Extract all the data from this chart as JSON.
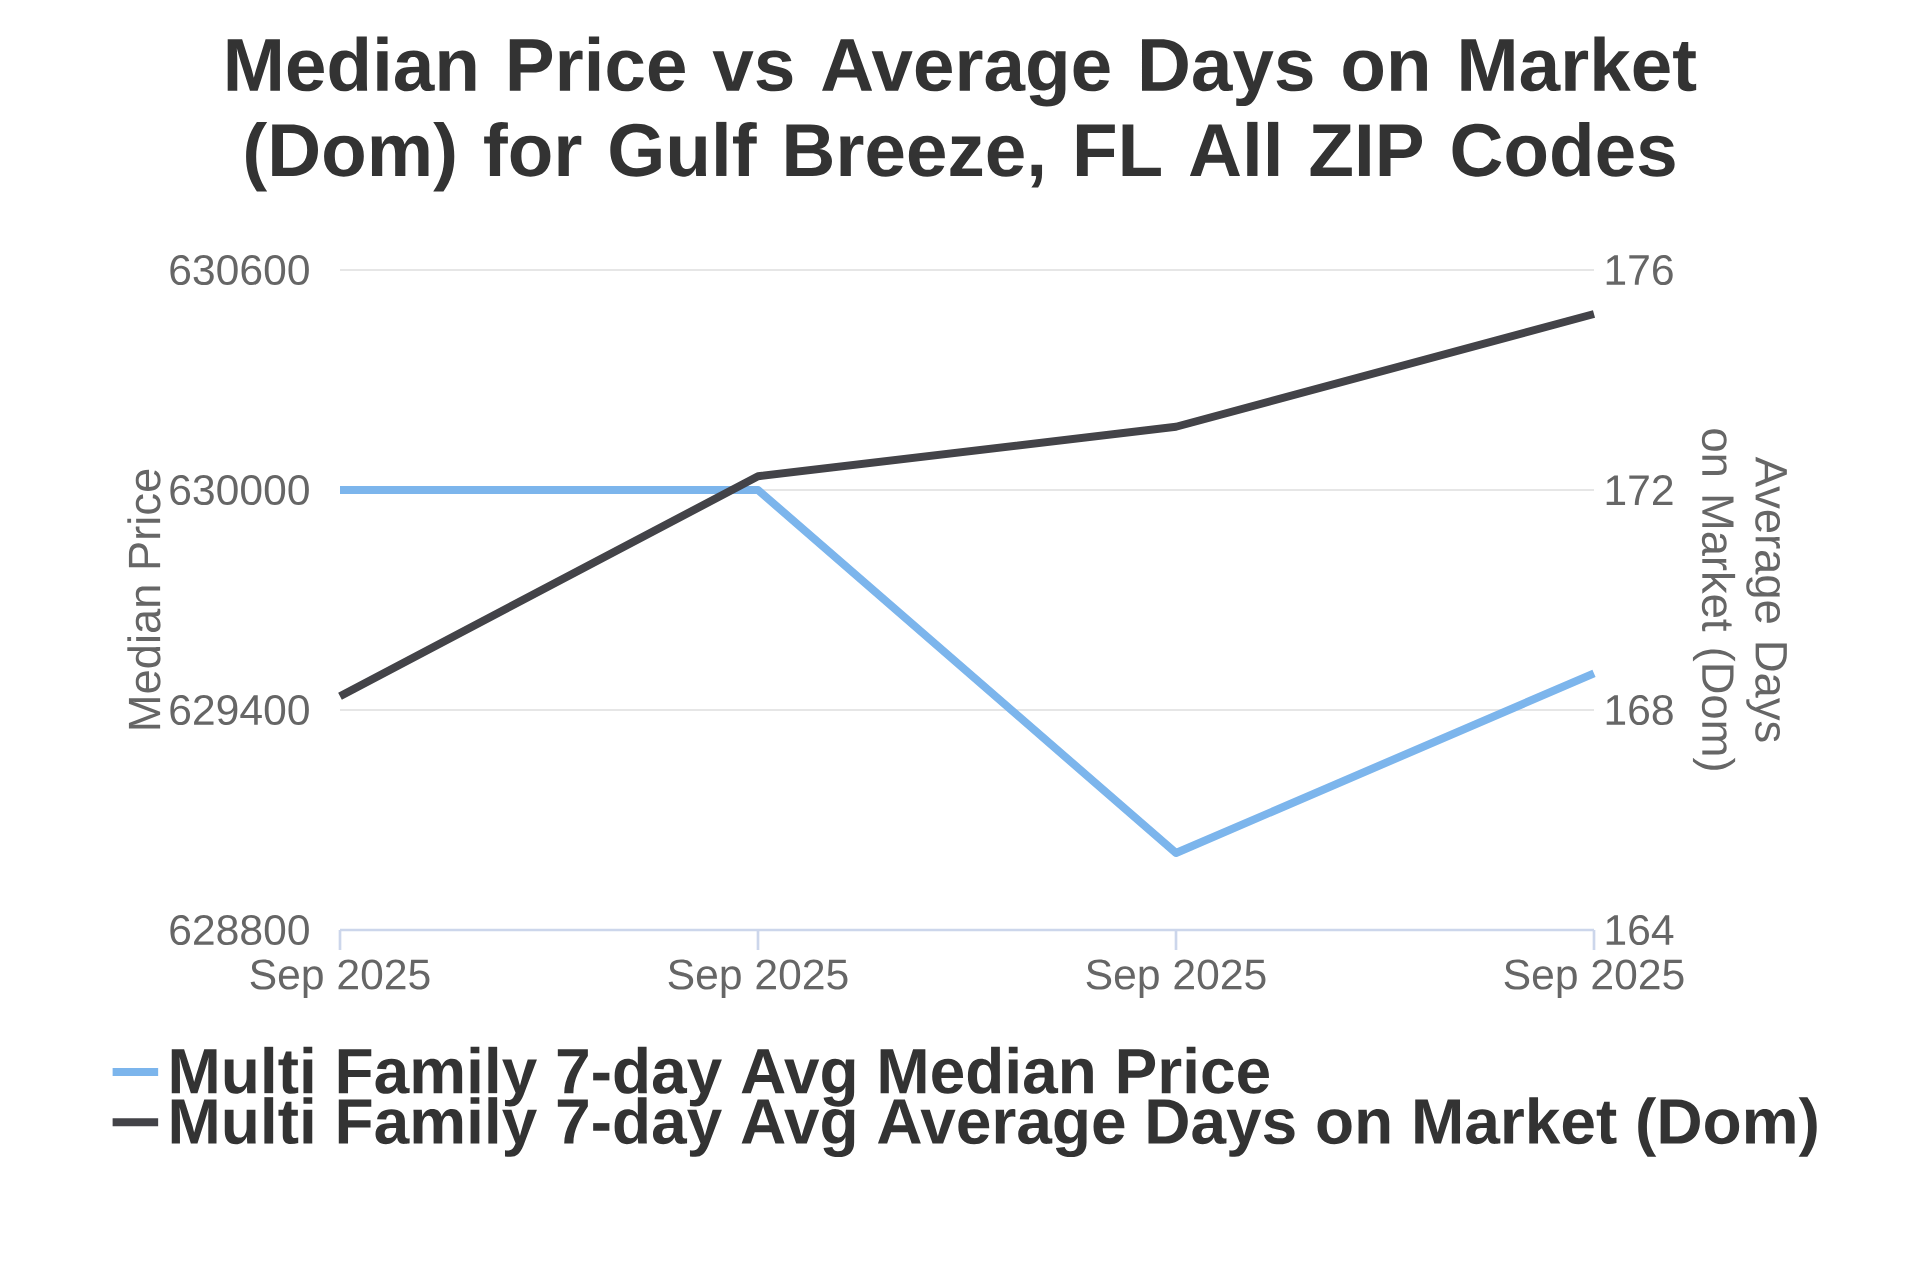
{
  "chart_data": {
    "type": "line",
    "title": "Median Price vs Average Days on Market (Dom) for Gulf Breeze, FL All ZIP Codes",
    "categories": [
      "Sep 2025",
      "Sep 2025",
      "Sep 2025",
      "Sep 2025"
    ],
    "series": [
      {
        "name": "Multi Family 7-day Avg Median Price",
        "color": "#7cb5ec",
        "values": [
          630000,
          630000,
          629010,
          629500
        ]
      },
      {
        "name": "Multi Family 7-day Avg Average Days on Market (Dom)",
        "color": "#434348",
        "axis": "y2",
        "values": [
          168.25,
          172.25,
          173.15,
          175.2
        ]
      }
    ],
    "ylabel": "Median Price",
    "y2label": "Average Days on Market (Dom)",
    "ylim": [
      628800,
      630600
    ],
    "yticks": [
      628800,
      629400,
      630000,
      630600
    ],
    "y2lim": [
      164,
      176
    ],
    "y2ticks": [
      164,
      168,
      172,
      176
    ],
    "grid": "y",
    "legend": "bottom",
    "marker": "none",
    "line_style": "solid"
  }
}
